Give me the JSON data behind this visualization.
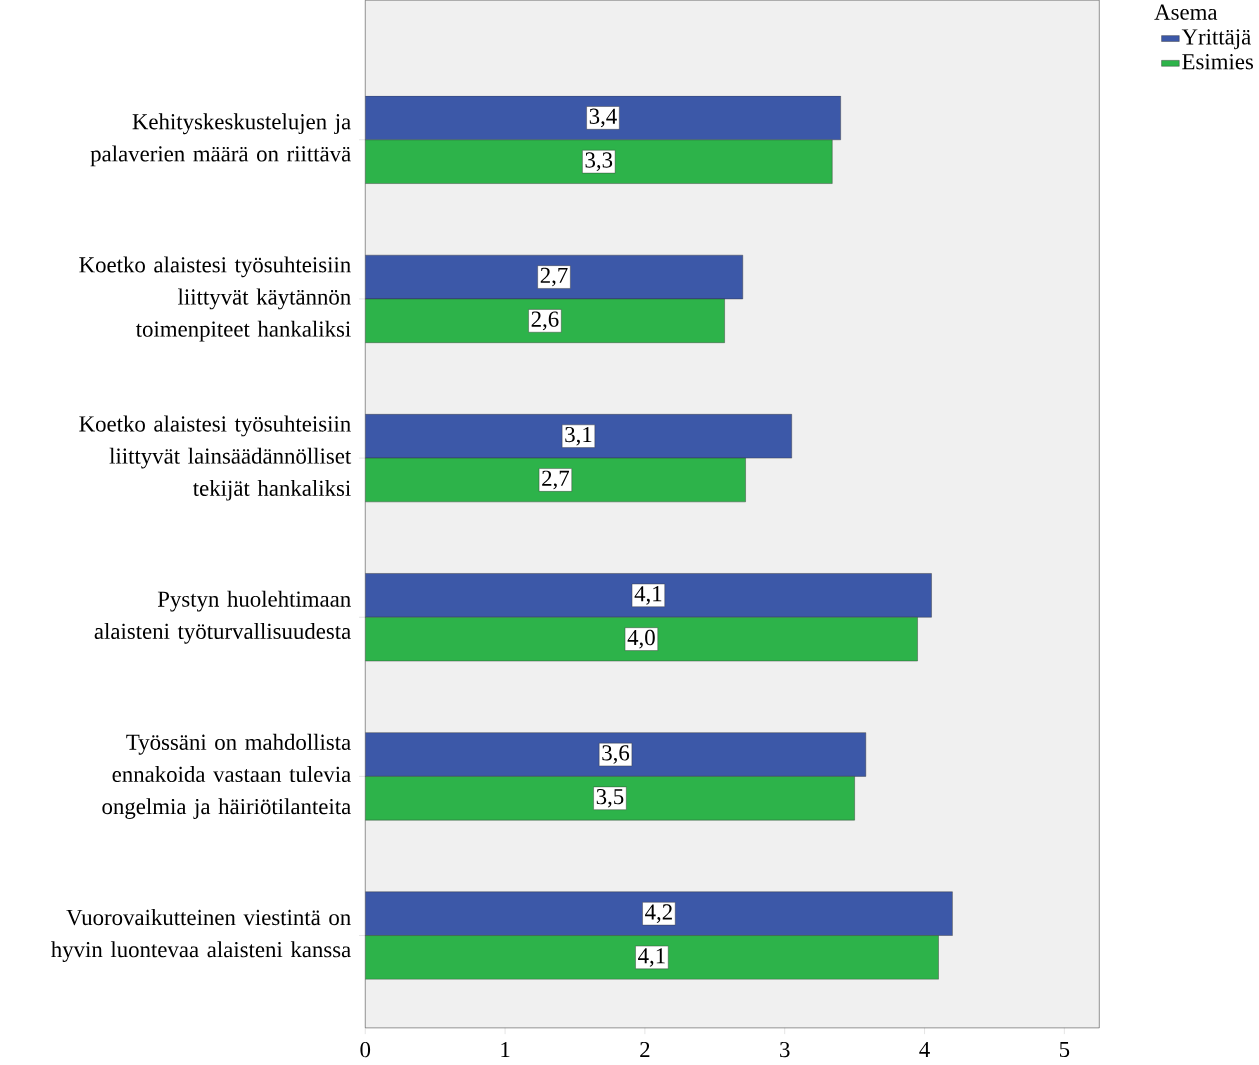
{
  "chart_data": {
    "type": "bar",
    "orientation": "horizontal",
    "legend_title": "Asema",
    "legend": "top right",
    "categories": [
      "Kehityskeskustelujen ja palaverien määrä on riittävä",
      "Koetko alaistesi työsuhteisiin liittyvät käytännön toimenpiteet hankaliksi",
      "Koetko alaistesi työsuhteisiin liittyvät lainsäädännölliset tekijät hankaliksi",
      "Pystyn huolehtimaan alaisteni työturvallisuudesta",
      "Työssäni on mahdollista ennakoida vastaan tulevia ongelmia ja häiriötilanteita",
      "Vuorovaikutteinen viestintä on hyvin luontevaa alaisteni kanssa"
    ],
    "series": [
      {
        "name": "Yrittäjä",
        "color": "#3c58a8",
        "values": [
          3.4,
          2.7,
          3.05,
          4.05,
          3.58,
          4.2
        ],
        "value_labels": [
          "3,4",
          "2,7",
          "3,1",
          "4,1",
          "3,6",
          "4,2"
        ]
      },
      {
        "name": "Esimies",
        "color": "#2db34a",
        "values": [
          3.34,
          2.57,
          2.72,
          3.95,
          3.5,
          4.1
        ],
        "value_labels": [
          "3,3",
          "2,6",
          "2,7",
          "4,0",
          "3,5",
          "4,1"
        ]
      }
    ],
    "xlim": [
      0,
      5.25
    ],
    "xticks": [
      0,
      1,
      2,
      3,
      4,
      5
    ]
  }
}
